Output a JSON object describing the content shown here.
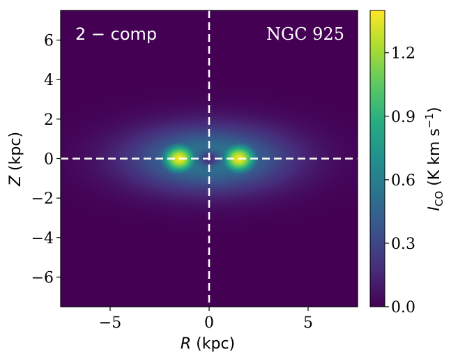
{
  "chart_data": {
    "type": "heatmap",
    "title": "",
    "model_label": "2 − comp",
    "galaxy_label": "NGC 925",
    "xlabel": {
      "italic": "R",
      "rest": " (kpc)"
    },
    "ylabel": {
      "italic": "Z",
      "rest": " (kpc)"
    },
    "xlim": [
      -7.5,
      7.5
    ],
    "ylim": [
      -7.5,
      7.5
    ],
    "x_ticks": [
      {
        "value": -5,
        "label": "−5"
      },
      {
        "value": 0,
        "label": "0"
      },
      {
        "value": 5,
        "label": "5"
      }
    ],
    "y_ticks": [
      {
        "value": 6,
        "label": "6"
      },
      {
        "value": 4,
        "label": "4"
      },
      {
        "value": 2,
        "label": "2"
      },
      {
        "value": 0,
        "label": "0"
      },
      {
        "value": -2,
        "label": "−2"
      },
      {
        "value": -4,
        "label": "−4"
      },
      {
        "value": -6,
        "label": "−6"
      }
    ],
    "reference_lines": {
      "x": 0,
      "z": 0,
      "style": "dashed",
      "color": "#ffffff"
    },
    "colorbar": {
      "label_main": "I",
      "label_sub": "CO",
      "label_units": " (K km s",
      "label_exp": "−1",
      "label_close": ")",
      "range": [
        0.0,
        1.4
      ],
      "ticks": [
        {
          "value": 0.0,
          "label": "0.0"
        },
        {
          "value": 0.3,
          "label": "0.3"
        },
        {
          "value": 0.6,
          "label": "0.6"
        },
        {
          "value": 0.9,
          "label": "0.9"
        },
        {
          "value": 1.2,
          "label": "1.2"
        }
      ],
      "colormap": "viridis"
    },
    "model": {
      "description_units": "kpc",
      "disk_scale_R": 4.0,
      "disk_scale_Z": 1.6,
      "ring_radius": 1.5,
      "ring_width_R": 0.9,
      "ring_width_Z": 0.75,
      "central_hole_R": 0.55,
      "central_hole_Z": 0.42,
      "peak_intensity": 1.38,
      "disk_intensity": 0.62
    }
  },
  "colors": {
    "background": "#440154",
    "reference_line": "#ffffff",
    "axis": "#000000"
  }
}
